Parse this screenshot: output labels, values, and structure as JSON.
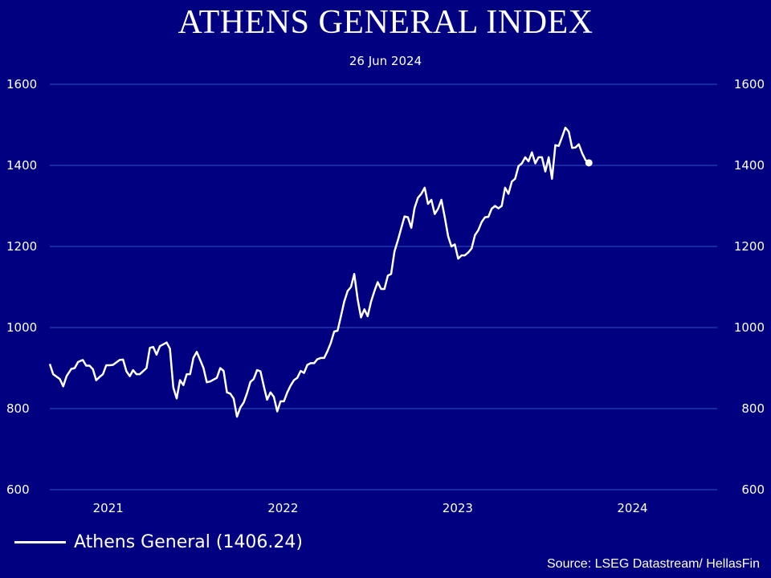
{
  "colors": {
    "background": "#000080",
    "gridline": "#2f52c8",
    "line": "#ffffff",
    "text": "#ffffff"
  },
  "chart_data": {
    "type": "line",
    "title": "ATHENS GENERAL INDEX",
    "subtitle": "26 Jun 2024",
    "ylim": [
      600,
      1600
    ],
    "yticks": [
      600,
      800,
      1000,
      1200,
      1400,
      1600
    ],
    "y_axis_sides": [
      "left",
      "right"
    ],
    "xlim": [
      "2020-09-01",
      "2024-06-26"
    ],
    "xticks": [
      {
        "label": "2021",
        "date": "2021-01-01"
      },
      {
        "label": "2022",
        "date": "2022-01-01"
      },
      {
        "label": "2023",
        "date": "2023-01-01"
      },
      {
        "label": "2024",
        "date": "2024-01-01"
      }
    ],
    "grid": true,
    "legend_position": "bottom-left",
    "series": [
      {
        "name": "Athens General (1406.24)",
        "end_marker": true,
        "points": [
          [
            "2020-09-01",
            910
          ],
          [
            "2020-09-08",
            885
          ],
          [
            "2020-09-22",
            873
          ],
          [
            "2020-09-29",
            855
          ],
          [
            "2020-10-06",
            880
          ],
          [
            "2020-10-16",
            898
          ],
          [
            "2020-10-23",
            900
          ],
          [
            "2020-10-30",
            915
          ],
          [
            "2020-11-09",
            920
          ],
          [
            "2020-11-16",
            906
          ],
          [
            "2020-11-23",
            906
          ],
          [
            "2020-11-30",
            897
          ],
          [
            "2020-12-07",
            870
          ],
          [
            "2020-12-14",
            878
          ],
          [
            "2020-12-21",
            885
          ],
          [
            "2020-12-28",
            907
          ],
          [
            "2021-01-04",
            907
          ],
          [
            "2021-01-11",
            908
          ],
          [
            "2021-01-25",
            920
          ],
          [
            "2021-02-01",
            921
          ],
          [
            "2021-02-08",
            892
          ],
          [
            "2021-02-15",
            880
          ],
          [
            "2021-02-22",
            895
          ],
          [
            "2021-03-01",
            885
          ],
          [
            "2021-03-08",
            885
          ],
          [
            "2021-03-22",
            900
          ],
          [
            "2021-03-29",
            950
          ],
          [
            "2021-04-05",
            952
          ],
          [
            "2021-04-12",
            933
          ],
          [
            "2021-04-19",
            954
          ],
          [
            "2021-05-03",
            963
          ],
          [
            "2021-05-10",
            948
          ],
          [
            "2021-05-17",
            852
          ],
          [
            "2021-05-24",
            825
          ],
          [
            "2021-05-31",
            870
          ],
          [
            "2021-06-07",
            858
          ],
          [
            "2021-06-14",
            885
          ],
          [
            "2021-06-21",
            885
          ],
          [
            "2021-06-28",
            925
          ],
          [
            "2021-07-05",
            940
          ],
          [
            "2021-07-12",
            920
          ],
          [
            "2021-07-19",
            900
          ],
          [
            "2021-07-26",
            865
          ],
          [
            "2021-08-02",
            867
          ],
          [
            "2021-08-16",
            876
          ],
          [
            "2021-08-23",
            900
          ],
          [
            "2021-08-30",
            893
          ],
          [
            "2021-09-06",
            840
          ],
          [
            "2021-09-13",
            837
          ],
          [
            "2021-09-20",
            825
          ],
          [
            "2021-09-27",
            780
          ],
          [
            "2021-10-04",
            803
          ],
          [
            "2021-10-11",
            815
          ],
          [
            "2021-10-18",
            838
          ],
          [
            "2021-10-25",
            866
          ],
          [
            "2021-11-01",
            873
          ],
          [
            "2021-11-08",
            895
          ],
          [
            "2021-11-15",
            892
          ],
          [
            "2021-11-22",
            855
          ],
          [
            "2021-11-29",
            822
          ],
          [
            "2021-12-06",
            840
          ],
          [
            "2021-12-13",
            829
          ],
          [
            "2021-12-20",
            793
          ],
          [
            "2021-12-27",
            818
          ],
          [
            "2022-01-03",
            818
          ],
          [
            "2022-01-10",
            840
          ],
          [
            "2022-01-17",
            857
          ],
          [
            "2022-01-24",
            870
          ],
          [
            "2022-01-31",
            876
          ],
          [
            "2022-02-07",
            893
          ],
          [
            "2022-02-14",
            888
          ],
          [
            "2022-02-21",
            908
          ],
          [
            "2022-02-28",
            912
          ],
          [
            "2022-03-07",
            912
          ],
          [
            "2022-03-14",
            922
          ],
          [
            "2022-03-21",
            925
          ],
          [
            "2022-03-28",
            925
          ],
          [
            "2022-04-04",
            942
          ],
          [
            "2022-04-11",
            962
          ],
          [
            "2022-04-18",
            990
          ],
          [
            "2022-04-25",
            992
          ],
          [
            "2022-05-02",
            1027
          ],
          [
            "2022-05-09",
            1064
          ],
          [
            "2022-05-16",
            1090
          ],
          [
            "2022-05-23",
            1100
          ],
          [
            "2022-05-30",
            1132
          ],
          [
            "2022-06-06",
            1070
          ],
          [
            "2022-06-13",
            1025
          ],
          [
            "2022-06-20",
            1045
          ],
          [
            "2022-06-27",
            1028
          ],
          [
            "2022-07-04",
            1064
          ],
          [
            "2022-07-11",
            1090
          ],
          [
            "2022-07-18",
            1112
          ],
          [
            "2022-07-25",
            1095
          ],
          [
            "2022-08-01",
            1095
          ],
          [
            "2022-08-08",
            1128
          ],
          [
            "2022-08-15",
            1132
          ],
          [
            "2022-08-22",
            1188
          ],
          [
            "2022-08-29",
            1215
          ],
          [
            "2022-09-05",
            1245
          ],
          [
            "2022-09-12",
            1274
          ],
          [
            "2022-09-19",
            1272
          ],
          [
            "2022-09-26",
            1246
          ],
          [
            "2022-10-03",
            1295
          ],
          [
            "2022-10-10",
            1320
          ],
          [
            "2022-10-17",
            1330
          ],
          [
            "2022-10-24",
            1345
          ],
          [
            "2022-10-31",
            1305
          ],
          [
            "2022-11-07",
            1315
          ],
          [
            "2022-11-14",
            1280
          ],
          [
            "2022-11-21",
            1293
          ],
          [
            "2022-11-28",
            1315
          ],
          [
            "2022-12-05",
            1272
          ],
          [
            "2022-12-12",
            1225
          ],
          [
            "2022-12-19",
            1200
          ],
          [
            "2022-12-26",
            1205
          ],
          [
            "2023-01-02",
            1170
          ],
          [
            "2023-01-09",
            1178
          ],
          [
            "2023-01-16",
            1178
          ],
          [
            "2023-01-23",
            1185
          ],
          [
            "2023-01-30",
            1195
          ],
          [
            "2023-02-06",
            1228
          ],
          [
            "2023-02-13",
            1240
          ],
          [
            "2023-02-20",
            1260
          ],
          [
            "2023-02-27",
            1272
          ],
          [
            "2023-03-06",
            1273
          ],
          [
            "2023-03-13",
            1293
          ],
          [
            "2023-03-20",
            1300
          ],
          [
            "2023-03-27",
            1294
          ],
          [
            "2023-04-03",
            1300
          ],
          [
            "2023-04-10",
            1345
          ],
          [
            "2023-04-17",
            1330
          ],
          [
            "2023-04-24",
            1360
          ],
          [
            "2023-05-01",
            1367
          ],
          [
            "2023-05-08",
            1398
          ],
          [
            "2023-05-15",
            1405
          ],
          [
            "2023-05-22",
            1420
          ],
          [
            "2023-05-29",
            1410
          ],
          [
            "2023-06-05",
            1432
          ],
          [
            "2023-06-12",
            1405
          ],
          [
            "2023-06-19",
            1420
          ],
          [
            "2023-06-26",
            1420
          ],
          [
            "2023-07-03",
            1385
          ],
          [
            "2023-07-10",
            1420
          ],
          [
            "2023-07-17",
            1367
          ],
          [
            "2023-07-24",
            1450
          ],
          [
            "2023-07-31",
            1448
          ],
          [
            "2023-08-07",
            1470
          ],
          [
            "2023-08-14",
            1493
          ],
          [
            "2023-08-21",
            1483
          ],
          [
            "2023-08-28",
            1443
          ],
          [
            "2023-09-04",
            1444
          ],
          [
            "2023-09-11",
            1452
          ],
          [
            "2023-09-18",
            1430
          ],
          [
            "2023-09-25",
            1413
          ],
          [
            "2023-10-02",
            1406.24
          ]
        ]
      }
    ]
  },
  "legend": {
    "label": "Athens General (1406.24)"
  },
  "source": "Source: LSEG Datastream/ HellasFin"
}
